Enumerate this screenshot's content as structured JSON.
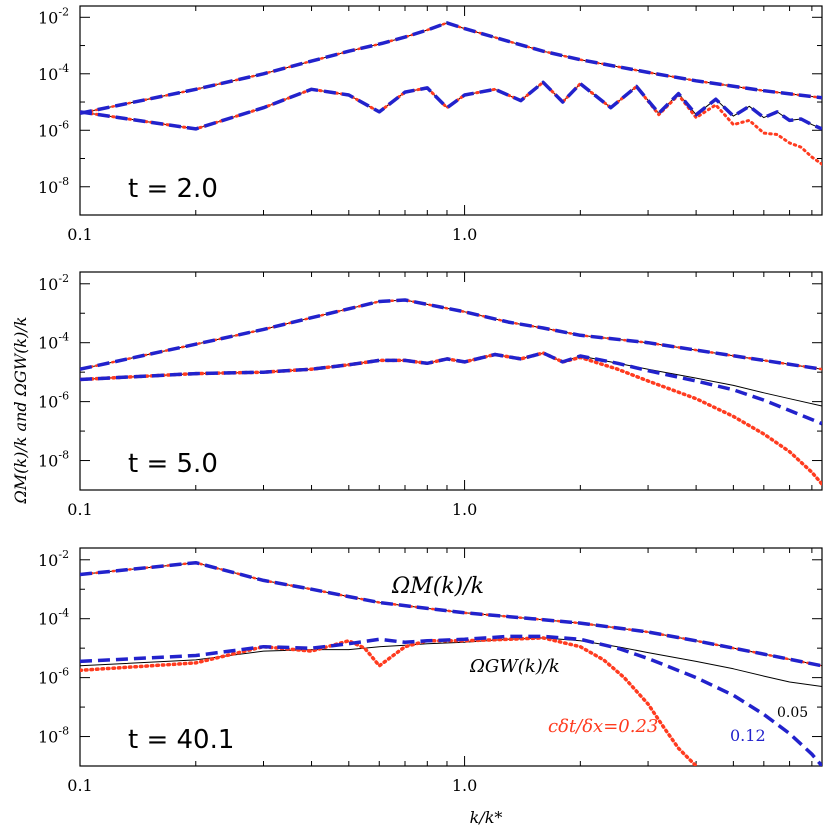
{
  "chart_data": {
    "type": "line",
    "xscale": "log",
    "yscale": "log",
    "xlabel": "k/k*",
    "ylabel": "ΩM(k)/k  and  ΩGW(k)/k",
    "xlim": [
      0.1,
      8.5
    ],
    "x_ticks": [
      {
        "v": 0.1,
        "t": "0.1"
      },
      {
        "v": 1.0,
        "t": "1.0"
      }
    ],
    "y_ticks": [
      {
        "e": -2,
        "b": "10",
        "s": "-2"
      },
      {
        "e": -4,
        "b": "10",
        "s": "-4"
      },
      {
        "e": -6,
        "b": "10",
        "s": "-6"
      },
      {
        "e": -8,
        "b": "10",
        "s": "-8"
      }
    ],
    "ylim_exp": [
      -9,
      -1.6
    ],
    "legend_series": [
      "0.05",
      "0.12",
      "cδt/δx=0.23"
    ],
    "colors": {
      "c005": "#000000",
      "c012": "#2222cc",
      "c023": "#ff3b1f"
    },
    "panels": [
      {
        "time_label": "t  =  2.0",
        "magnetic": {
          "x": [
            0.1,
            0.2,
            0.3,
            0.4,
            0.5,
            0.6,
            0.7,
            0.8,
            0.9,
            1.0,
            1.3,
            1.6,
            2.0,
            3.0,
            4.0,
            6.0,
            8.5
          ],
          "logy": [
            -5.4,
            -4.55,
            -4.0,
            -3.55,
            -3.2,
            -2.95,
            -2.7,
            -2.45,
            -2.2,
            -2.4,
            -2.85,
            -3.2,
            -3.5,
            -3.95,
            -4.25,
            -4.6,
            -4.85
          ]
        },
        "gw_smooth": {
          "x": [
            0.1,
            0.2,
            0.3,
            0.4,
            0.5,
            0.6,
            0.7,
            0.8,
            0.9,
            1.0,
            1.2,
            1.4,
            1.6,
            1.8,
            2.0,
            2.4,
            2.8,
            3.2,
            3.6,
            4.0,
            4.5,
            5.0,
            5.5,
            6.0,
            6.5,
            7.0,
            7.5,
            8.0,
            8.5
          ],
          "logy": [
            -5.35,
            -5.95,
            -5.2,
            -4.55,
            -4.75,
            -5.35,
            -4.65,
            -4.5,
            -5.2,
            -4.75,
            -4.55,
            -4.95,
            -4.3,
            -5.0,
            -4.35,
            -5.2,
            -4.45,
            -5.4,
            -4.7,
            -5.45,
            -4.9,
            -5.5,
            -5.15,
            -5.55,
            -5.35,
            -5.65,
            -5.6,
            -5.8,
            -5.95
          ]
        },
        "gw_red": {
          "x": [
            0.1,
            0.2,
            0.3,
            0.4,
            0.5,
            0.6,
            0.7,
            0.8,
            0.9,
            1.0,
            1.2,
            1.4,
            1.6,
            1.8,
            2.0,
            2.4,
            2.8,
            3.2,
            3.6,
            4.0,
            4.5,
            5.0,
            5.5,
            6.0,
            6.5,
            7.0,
            7.5,
            8.0,
            8.5
          ],
          "logy": [
            -5.35,
            -5.95,
            -5.2,
            -4.55,
            -4.75,
            -5.35,
            -4.65,
            -4.5,
            -5.2,
            -4.75,
            -4.55,
            -4.95,
            -4.3,
            -5.0,
            -4.35,
            -5.2,
            -4.45,
            -5.45,
            -4.75,
            -5.55,
            -5.1,
            -5.8,
            -5.65,
            -6.1,
            -6.15,
            -6.45,
            -6.6,
            -6.95,
            -7.2
          ]
        }
      },
      {
        "time_label": "t  =  5.0",
        "magnetic": {
          "x": [
            0.1,
            0.2,
            0.3,
            0.4,
            0.5,
            0.6,
            0.7,
            0.8,
            1.0,
            1.3,
            1.6,
            2.0,
            3.0,
            4.0,
            6.0,
            8.5
          ],
          "logy": [
            -4.9,
            -4.05,
            -3.55,
            -3.15,
            -2.85,
            -2.6,
            -2.55,
            -2.7,
            -2.95,
            -3.3,
            -3.5,
            -3.75,
            -4.0,
            -4.25,
            -4.6,
            -4.9
          ]
        },
        "gw_black": {
          "x": [
            0.1,
            0.2,
            0.3,
            0.4,
            0.5,
            0.6,
            0.7,
            0.8,
            0.9,
            1.0,
            1.2,
            1.4,
            1.6,
            1.8,
            2.0,
            2.5,
            3.0,
            4.0,
            5.0,
            6.0,
            7.0,
            8.5
          ],
          "logy": [
            -5.25,
            -5.05,
            -5.0,
            -4.9,
            -4.75,
            -4.6,
            -4.6,
            -4.7,
            -4.55,
            -4.65,
            -4.4,
            -4.55,
            -4.35,
            -4.65,
            -4.45,
            -4.7,
            -4.9,
            -5.2,
            -5.45,
            -5.7,
            -5.9,
            -6.15
          ]
        },
        "gw_blue": {
          "x": [
            0.1,
            0.2,
            0.3,
            0.4,
            0.5,
            0.6,
            0.7,
            0.8,
            0.9,
            1.0,
            1.2,
            1.4,
            1.6,
            1.8,
            2.0,
            2.5,
            3.0,
            4.0,
            5.0,
            6.0,
            7.0,
            8.5
          ],
          "logy": [
            -5.25,
            -5.05,
            -5.0,
            -4.9,
            -4.75,
            -4.6,
            -4.6,
            -4.7,
            -4.55,
            -4.65,
            -4.4,
            -4.55,
            -4.35,
            -4.65,
            -4.45,
            -4.7,
            -4.95,
            -5.3,
            -5.6,
            -5.95,
            -6.3,
            -6.75
          ]
        },
        "gw_red": {
          "x": [
            0.1,
            0.2,
            0.3,
            0.4,
            0.5,
            0.6,
            0.7,
            0.8,
            0.9,
            1.0,
            1.2,
            1.4,
            1.6,
            1.8,
            2.0,
            2.5,
            3.0,
            4.0,
            5.0,
            6.0,
            7.0,
            8.0,
            8.5
          ],
          "logy": [
            -5.25,
            -5.05,
            -5.0,
            -4.9,
            -4.75,
            -4.6,
            -4.6,
            -4.7,
            -4.55,
            -4.65,
            -4.4,
            -4.55,
            -4.35,
            -4.65,
            -4.5,
            -4.9,
            -5.3,
            -5.9,
            -6.5,
            -7.1,
            -7.7,
            -8.4,
            -8.8
          ]
        }
      },
      {
        "time_label": "t  =  40.1",
        "magnetic": {
          "x": [
            0.1,
            0.2,
            0.3,
            0.4,
            0.5,
            0.6,
            0.8,
            1.0,
            1.5,
            2.0,
            3.0,
            4.0,
            6.0,
            8.5
          ],
          "logy": [
            -2.5,
            -2.1,
            -2.7,
            -3.0,
            -3.25,
            -3.45,
            -3.65,
            -3.8,
            -4.0,
            -4.15,
            -4.45,
            -4.75,
            -5.2,
            -5.6
          ]
        },
        "annotation_magnetic": "ΩM(k)/k",
        "annotation_gw": "ΩGW(k)/k",
        "gw_black": {
          "x": [
            0.1,
            0.2,
            0.3,
            0.4,
            0.5,
            0.6,
            0.7,
            0.8,
            1.0,
            1.3,
            1.6,
            2.0,
            2.5,
            3.0,
            4.0,
            5.0,
            6.0,
            7.0,
            8.5
          ],
          "logy": [
            -5.6,
            -5.4,
            -5.1,
            -5.05,
            -5.05,
            -4.95,
            -4.9,
            -4.85,
            -4.8,
            -4.7,
            -4.65,
            -4.75,
            -4.95,
            -5.15,
            -5.45,
            -5.7,
            -5.95,
            -6.15,
            -6.3
          ]
        },
        "gw_blue": {
          "x": [
            0.1,
            0.2,
            0.3,
            0.4,
            0.5,
            0.6,
            0.7,
            0.8,
            1.0,
            1.3,
            1.6,
            2.0,
            2.5,
            3.0,
            4.0,
            5.0,
            6.0,
            7.0,
            8.0,
            8.5
          ],
          "logy": [
            -5.45,
            -5.25,
            -4.95,
            -5.0,
            -4.85,
            -4.7,
            -4.8,
            -4.75,
            -4.7,
            -4.6,
            -4.6,
            -4.7,
            -5.0,
            -5.35,
            -6.0,
            -6.6,
            -7.25,
            -7.9,
            -8.6,
            -9.0
          ]
        },
        "gw_red": {
          "x": [
            0.1,
            0.2,
            0.3,
            0.4,
            0.5,
            0.55,
            0.6,
            0.7,
            0.8,
            1.0,
            1.3,
            1.6,
            2.0,
            2.3,
            2.6,
            3.0,
            3.3,
            3.6,
            4.0
          ],
          "logy": [
            -5.75,
            -5.5,
            -4.95,
            -5.1,
            -4.75,
            -5.0,
            -5.6,
            -4.95,
            -4.75,
            -4.75,
            -4.7,
            -4.65,
            -4.95,
            -5.4,
            -6.0,
            -6.9,
            -7.7,
            -8.4,
            -9.0
          ]
        }
      }
    ]
  }
}
